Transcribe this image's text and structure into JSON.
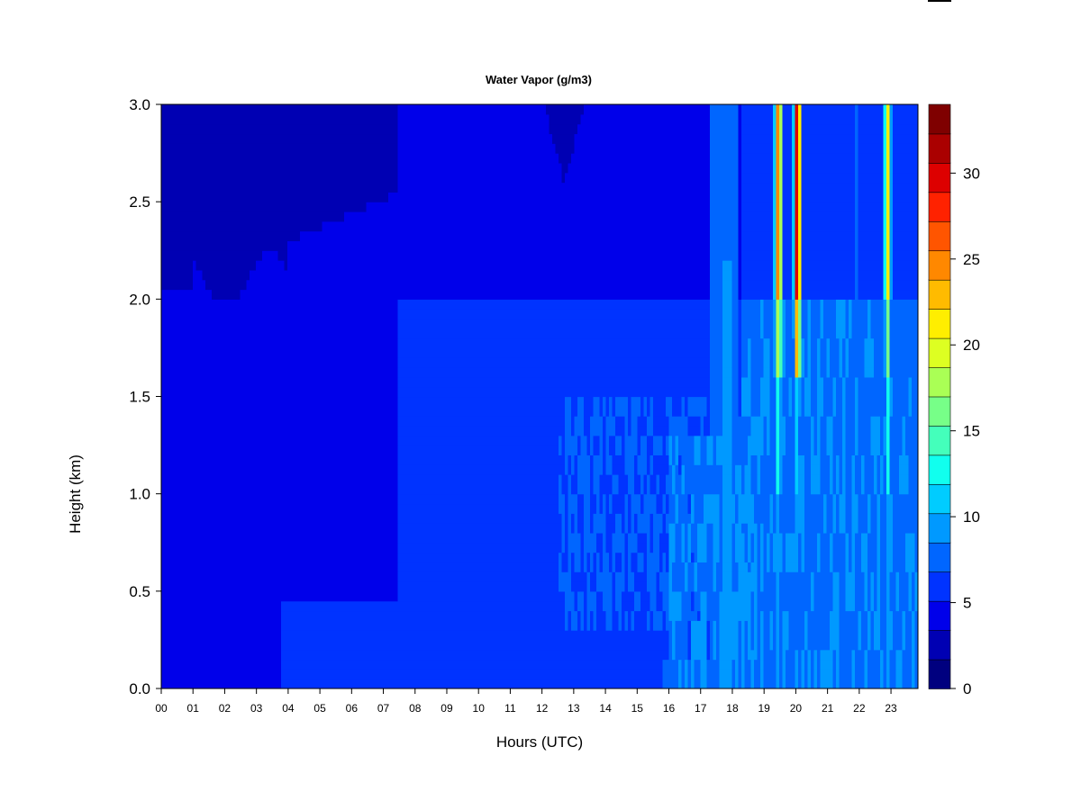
{
  "chart_data": {
    "type": "heatmap",
    "title": "Water Vapor (g/m3)",
    "xlabel": "Hours (UTC)",
    "ylabel": "Height (km)",
    "x_ticks": [
      "00",
      "01",
      "02",
      "03",
      "04",
      "05",
      "06",
      "07",
      "08",
      "09",
      "10",
      "11",
      "12",
      "13",
      "14",
      "15",
      "16",
      "17",
      "18",
      "19",
      "20",
      "21",
      "22",
      "23"
    ],
    "y_ticks": [
      "0.0",
      "0.5",
      "1.0",
      "1.5",
      "2.0",
      "2.5",
      "3.0"
    ],
    "xlim": [
      0,
      23.85
    ],
    "ylim": [
      0,
      3.0
    ],
    "colorbar": {
      "levels": [
        0,
        2.5,
        5,
        7.5,
        10,
        12.5,
        15,
        17.5,
        20,
        22.5,
        25,
        27.5,
        30,
        32.5,
        34
      ],
      "colors": [
        "#00007f",
        "#0000b3",
        "#0000ea",
        "#0033ff",
        "#0066ff",
        "#0099ff",
        "#00ccff",
        "#11ffee",
        "#44ffbb",
        "#77ff88",
        "#aaff55",
        "#ddff22",
        "#ffee00",
        "#ffbb00",
        "#ff8800",
        "#ff5500",
        "#ff2200",
        "#dd0000",
        "#aa0000",
        "#7f0000"
      ],
      "tick_labels": [
        "0",
        "5",
        "10",
        "15",
        "20",
        "25",
        "30"
      ],
      "tick_values": [
        0,
        5,
        10,
        15,
        20,
        25,
        30
      ]
    },
    "features": [
      {
        "hours": [
          0,
          7.5
        ],
        "description": "low values 1-4 g/m3 through column"
      },
      {
        "hours": [
          4,
          17
        ],
        "description": "surface layer 5-8 g/m3 below 0.4 km"
      },
      {
        "hours": [
          12,
          19
        ],
        "description": "mid-level 6-9 g/m3 below 1.5 km"
      },
      {
        "hours": [
          19.3,
          19.7
        ],
        "description": "vertical column peaking ~25 g/m3 above 2 km"
      },
      {
        "hours": [
          19.9,
          20.2
        ],
        "description": "vertical column peaking ~30+ g/m3 above 2 km"
      },
      {
        "hours": [
          22.8,
          23.05
        ],
        "description": "vertical column peaking ~22 g/m3 above 2.2 km"
      }
    ]
  }
}
